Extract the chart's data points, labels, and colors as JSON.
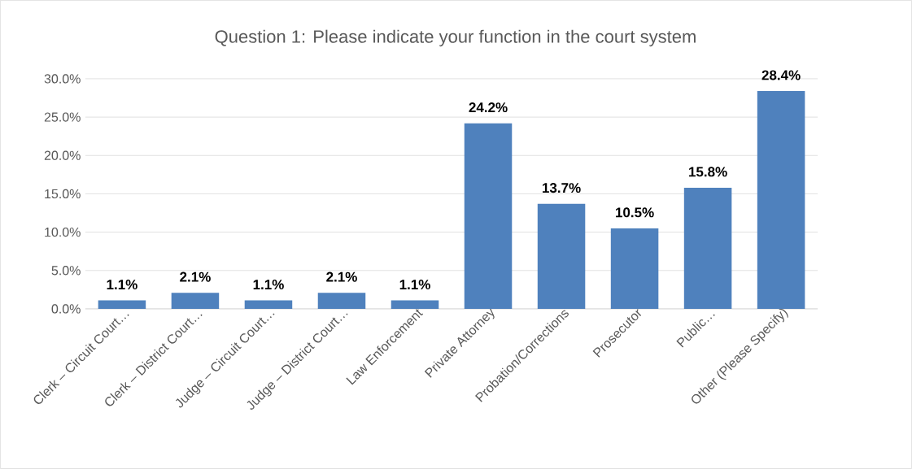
{
  "chart_data": {
    "type": "bar",
    "title": "Question 1:   Please indicate your function in the court system",
    "categories": [
      "Clerk – Circuit Court…",
      "Clerk – District Court…",
      "Judge – Circuit Court…",
      "Judge – District Court…",
      "Law Enforcement",
      "Private Attorney",
      "Probation/Corrections",
      "Prosecutor",
      "Public…",
      "Other (Please Specify)"
    ],
    "values": [
      1.1,
      2.1,
      1.1,
      2.1,
      1.1,
      24.2,
      13.7,
      10.5,
      15.8,
      28.4
    ],
    "value_labels": [
      "1.1%",
      "2.1%",
      "1.1%",
      "2.1%",
      "1.1%",
      "24.2%",
      "13.7%",
      "10.5%",
      "15.8%",
      "28.4%"
    ],
    "color": "#4f81bd",
    "ylim": [
      0,
      30
    ],
    "yticks": [
      {
        "value": 0,
        "label": "0.0%"
      },
      {
        "value": 5,
        "label": "5.0%"
      },
      {
        "value": 10,
        "label": "10.0%"
      },
      {
        "value": 15,
        "label": "15.0%"
      },
      {
        "value": 20,
        "label": "20.0%"
      },
      {
        "value": 25,
        "label": "25.0%"
      },
      {
        "value": 30,
        "label": "30.0%"
      }
    ],
    "grid": "y"
  }
}
